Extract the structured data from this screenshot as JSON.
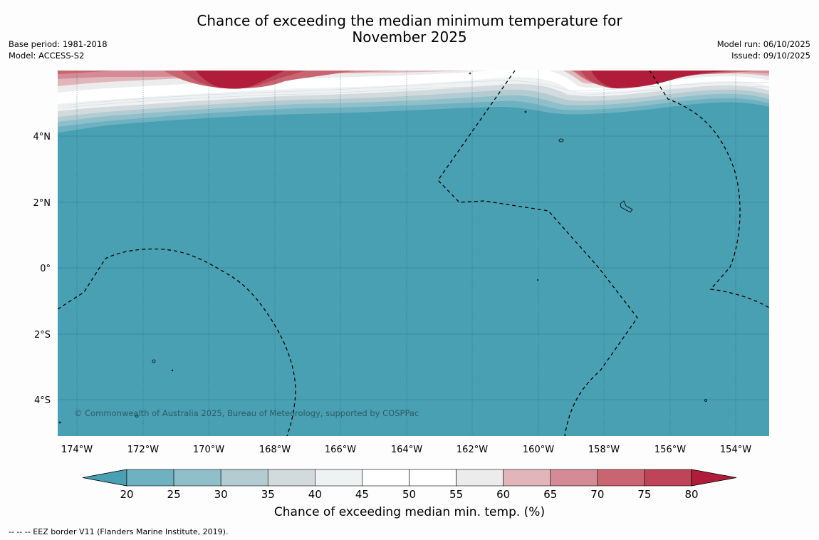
{
  "header": {
    "title_line1": "Chance of exceeding the median minimum temperature for",
    "title_line2": "November 2025",
    "base_period": "Base period: 1981-2018",
    "model": "Model: ACCESS-S2",
    "model_run": "Model run: 06/10/2025",
    "issued": "Issued: 09/10/2025"
  },
  "map": {
    "copyright": "© Commonwealth of Australia 2025, Bureau of Meteorology, supported by COSPPac",
    "lon_labels": [
      "174°W",
      "172°W",
      "170°W",
      "168°W",
      "166°W",
      "164°W",
      "162°W",
      "160°W",
      "158°W",
      "156°W",
      "154°W"
    ],
    "lat_labels": [
      "4°N",
      "2°N",
      "0°",
      "2°S",
      "4°S"
    ],
    "background_color": "#48a0b2"
  },
  "colorbar": {
    "label": "Chance of exceeding median min. temp. (%)",
    "ticks": [
      "20",
      "25",
      "30",
      "35",
      "40",
      "45",
      "50",
      "55",
      "60",
      "65",
      "70",
      "75",
      "80"
    ],
    "colors": [
      "#48a0b2",
      "#6eb1c0",
      "#8fbfca",
      "#b2ccd2",
      "#d3dadd",
      "#eef2f3",
      "#ffffff",
      "#ffffff",
      "#ececed",
      "#e2b5bb",
      "#d48b96",
      "#c86570",
      "#bd4557",
      "#b01c3a"
    ]
  },
  "footnote": "--  --  -- EEZ border V11 (Flanders Marine Institute, 2019)."
}
